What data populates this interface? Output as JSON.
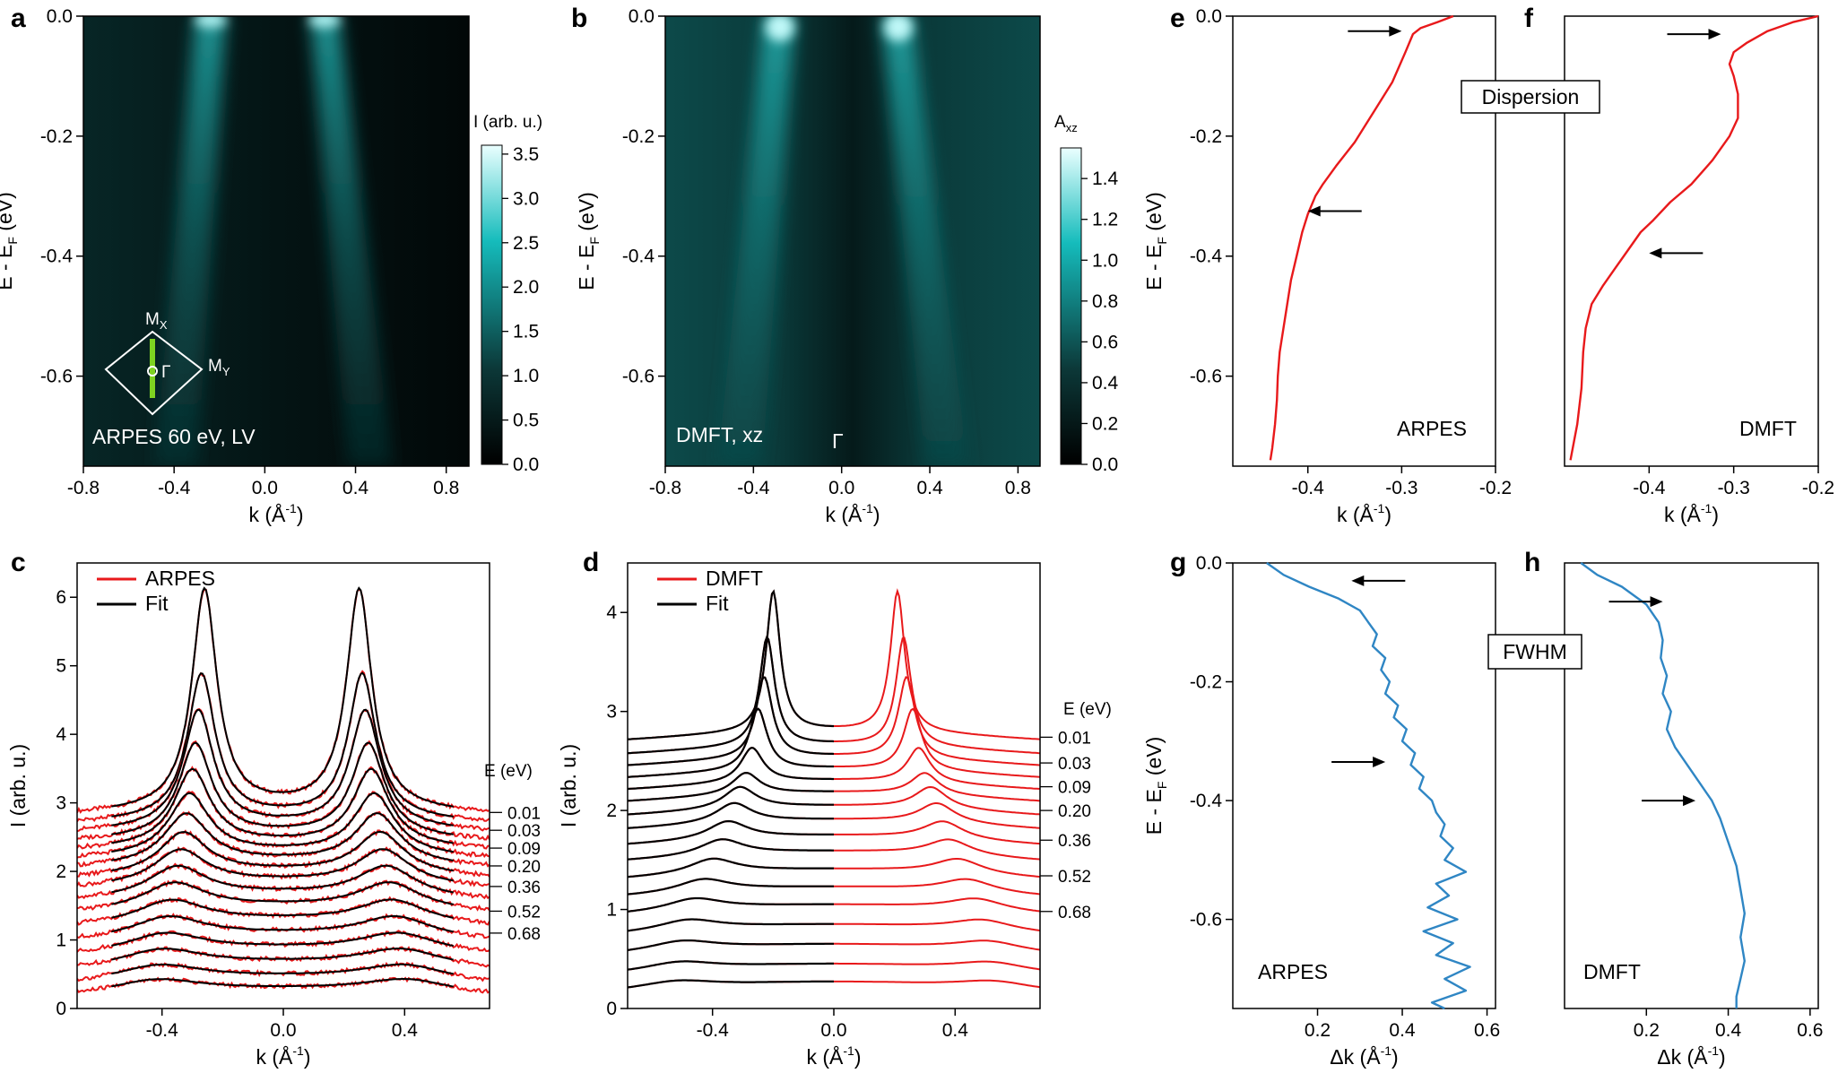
{
  "panels": {
    "a": {
      "letter": "a",
      "label": "ARPES 60 eV, LV",
      "cbar_title": "I (arb. u.)",
      "cbar_ticks": [
        "0.0",
        "0.5",
        "1.0",
        "1.5",
        "2.0",
        "2.5",
        "3.0",
        "3.5"
      ],
      "bz_mx": "M",
      "bz_mx_sub": "X",
      "bz_my": "M",
      "bz_my_sub": "Y",
      "bz_gamma": "Γ"
    },
    "b": {
      "letter": "b",
      "label": "DMFT, xz",
      "gamma": "Γ",
      "cbar_title": "A",
      "cbar_sub": "xz",
      "cbar_ticks": [
        "0.0",
        "0.2",
        "0.4",
        "0.6",
        "0.8",
        "1.0",
        "1.2",
        "1.4"
      ]
    },
    "c": {
      "letter": "c",
      "legend": [
        "ARPES",
        "Fit"
      ],
      "energy_title": "E (eV)",
      "energies": [
        "0.01",
        "0.03",
        "0.09",
        "0.20",
        "0.36",
        "0.52",
        "0.68"
      ]
    },
    "d": {
      "letter": "d",
      "legend": [
        "DMFT",
        "Fit"
      ],
      "energy_title": "E (eV)",
      "energies": [
        "0.01",
        "0.03",
        "0.09",
        "0.20",
        "0.36",
        "0.52",
        "0.68"
      ]
    },
    "e": {
      "letter": "e",
      "label": "ARPES"
    },
    "f": {
      "letter": "f",
      "label": "DMFT"
    },
    "g": {
      "letter": "g",
      "label": "ARPES"
    },
    "h": {
      "letter": "h",
      "label": "DMFT"
    }
  },
  "badges": {
    "dispersion": "Dispersion",
    "fwhm": "FWHM"
  },
  "axis_labels": {
    "energy": "E - E",
    "energy_sub": "F",
    "energy_unit": " (eV)",
    "k": "k (Å",
    "k_sup": "-1",
    "k_close": ")",
    "intensity": "I (arb. u.)",
    "dk": "Δk (Å",
    "dk_sup": "-1",
    "dk_close": ")"
  },
  "chart_data": [
    {
      "id": "a",
      "type": "heatmap",
      "title": "ARPES 60 eV, LV",
      "xlabel": "k (Å-1)",
      "ylabel": "E - EF (eV)",
      "xlim": [
        -0.8,
        0.9
      ],
      "ylim": [
        -0.75,
        0.0
      ],
      "xticks": [
        "-0.8",
        "-0.4",
        "0.0",
        "0.4",
        "0.8"
      ],
      "xtick_values": [
        -0.8,
        -0.4,
        0.0,
        0.4,
        0.8
      ],
      "yticks": [
        "0.0",
        "-0.2",
        "-0.4",
        "-0.6"
      ],
      "ytick_values": [
        0.0,
        -0.2,
        -0.4,
        -0.6
      ],
      "colorbar": {
        "label": "I (arb. u.)",
        "range": [
          0,
          3.6
        ],
        "colors": [
          "#000000",
          "#0c3838",
          "#15bcbc",
          "#eaffff"
        ]
      },
      "bands": [
        {
          "k_at_EF": -0.26,
          "k_at_bottom": -0.45
        },
        {
          "k_at_EF": 0.24,
          "k_at_bottom": 0.46
        }
      ]
    },
    {
      "id": "b",
      "type": "heatmap",
      "title": "DMFT, xz",
      "xlabel": "k (Å-1)",
      "ylabel": "E - EF (eV)",
      "xlim": [
        -0.8,
        0.9
      ],
      "ylim": [
        -0.75,
        0.0
      ],
      "xticks": [
        "-0.8",
        "-0.4",
        "0.0",
        "0.4",
        "0.8"
      ],
      "xtick_values": [
        -0.8,
        -0.4,
        0.0,
        0.4,
        0.8
      ],
      "yticks": [
        "0.0",
        "-0.2",
        "-0.4",
        "-0.6"
      ],
      "ytick_values": [
        0.0,
        -0.2,
        -0.4,
        -0.6
      ],
      "colorbar": {
        "label": "Axz",
        "range": [
          0,
          1.55
        ],
        "colors": [
          "#000000",
          "#0c3838",
          "#15bcbc",
          "#eaffff"
        ]
      },
      "bands": [
        {
          "k_at_EF": -0.3,
          "k_at_bottom": -0.5
        },
        {
          "k_at_EF": 0.28,
          "k_at_bottom": 0.5
        }
      ]
    },
    {
      "id": "c",
      "type": "line",
      "xlabel": "k (Å-1)",
      "ylabel": "I (arb. u.)",
      "xlim": [
        -0.68,
        0.68
      ],
      "ylim": [
        0,
        6.5
      ],
      "xticks": [
        "-0.4",
        "0.0",
        "0.4"
      ],
      "xtick_values": [
        -0.4,
        0.0,
        0.4
      ],
      "yticks": [
        "0",
        "1",
        "2",
        "3",
        "4",
        "5",
        "6"
      ],
      "ytick_values": [
        0,
        1,
        2,
        3,
        4,
        5,
        6
      ],
      "legend": [
        "ARPES",
        "Fit"
      ],
      "energy_labels": [
        "0.01",
        "0.03",
        "0.09",
        "0.20",
        "0.36",
        "0.52",
        "0.68"
      ],
      "series": [
        {
          "offset": 2.86,
          "kL": -0.26,
          "kR": 0.25,
          "amp": 3.2,
          "width": 0.05
        },
        {
          "offset": 2.73,
          "kL": -0.27,
          "kR": 0.26,
          "amp": 2.1,
          "width": 0.055
        },
        {
          "offset": 2.6,
          "kL": -0.28,
          "kR": 0.27,
          "amp": 1.7,
          "width": 0.06
        },
        {
          "offset": 2.47,
          "kL": -0.29,
          "kR": 0.28,
          "amp": 1.35,
          "width": 0.065
        },
        {
          "offset": 2.34,
          "kL": -0.3,
          "kR": 0.29,
          "amp": 1.1,
          "width": 0.072
        },
        {
          "offset": 2.21,
          "kL": -0.31,
          "kR": 0.3,
          "amp": 0.88,
          "width": 0.08
        },
        {
          "offset": 2.08,
          "kL": -0.32,
          "kR": 0.31,
          "amp": 0.72,
          "width": 0.088
        },
        {
          "offset": 1.93,
          "kL": -0.33,
          "kR": 0.32,
          "amp": 0.6,
          "width": 0.095
        },
        {
          "offset": 1.78,
          "kL": -0.34,
          "kR": 0.33,
          "amp": 0.5,
          "width": 0.105
        },
        {
          "offset": 1.6,
          "kL": -0.35,
          "kR": 0.34,
          "amp": 0.44,
          "width": 0.115
        },
        {
          "offset": 1.42,
          "kL": -0.36,
          "kR": 0.35,
          "amp": 0.38,
          "width": 0.125
        },
        {
          "offset": 1.22,
          "kL": -0.37,
          "kR": 0.36,
          "amp": 0.33,
          "width": 0.135
        },
        {
          "offset": 1.01,
          "kL": -0.38,
          "kR": 0.37,
          "amp": 0.3,
          "width": 0.145
        },
        {
          "offset": 0.8,
          "kL": -0.39,
          "kR": 0.38,
          "amp": 0.27,
          "width": 0.155
        },
        {
          "offset": 0.59,
          "kL": -0.4,
          "kR": 0.39,
          "amp": 0.25,
          "width": 0.165
        },
        {
          "offset": 0.38,
          "kL": -0.41,
          "kR": 0.4,
          "amp": 0.23,
          "width": 0.175
        },
        {
          "offset": 0.2,
          "kL": -0.42,
          "kR": 0.41,
          "amp": 0.2,
          "width": 0.185
        }
      ],
      "label_offsets": [
        2.86,
        2.6,
        2.34,
        2.08,
        1.78,
        1.42,
        1.1
      ]
    },
    {
      "id": "d",
      "type": "line",
      "xlabel": "k (Å-1)",
      "ylabel": "I (arb. u.)",
      "xlim": [
        -0.68,
        0.68
      ],
      "ylim": [
        0,
        4.5
      ],
      "xticks": [
        "-0.4",
        "0.0",
        "0.4"
      ],
      "xtick_values": [
        -0.4,
        0.0,
        0.4
      ],
      "yticks": [
        "0",
        "1",
        "2",
        "3",
        "4"
      ],
      "ytick_values": [
        0,
        1,
        2,
        3,
        4
      ],
      "legend": [
        "DMFT",
        "Fit"
      ],
      "energy_labels": [
        "0.01",
        "0.03",
        "0.09",
        "0.20",
        "0.36",
        "0.52",
        "0.68"
      ],
      "series": [
        {
          "offset": 2.74,
          "kL": -0.2,
          "kR": 0.21,
          "amp": 1.42,
          "width": 0.028
        },
        {
          "offset": 2.6,
          "kL": -0.22,
          "kR": 0.23,
          "amp": 1.1,
          "width": 0.03
        },
        {
          "offset": 2.48,
          "kL": -0.23,
          "kR": 0.24,
          "amp": 0.82,
          "width": 0.033
        },
        {
          "offset": 2.36,
          "kL": -0.25,
          "kR": 0.26,
          "amp": 0.62,
          "width": 0.036
        },
        {
          "offset": 2.24,
          "kL": -0.27,
          "kR": 0.28,
          "amp": 0.35,
          "width": 0.045
        },
        {
          "offset": 2.12,
          "kL": -0.29,
          "kR": 0.3,
          "amp": 0.22,
          "width": 0.055
        },
        {
          "offset": 1.98,
          "kL": -0.31,
          "kR": 0.32,
          "amp": 0.22,
          "width": 0.065
        },
        {
          "offset": 1.84,
          "kL": -0.33,
          "kR": 0.34,
          "amp": 0.2,
          "width": 0.072
        },
        {
          "offset": 1.68,
          "kL": -0.35,
          "kR": 0.36,
          "amp": 0.18,
          "width": 0.08
        },
        {
          "offset": 1.52,
          "kL": -0.37,
          "kR": 0.38,
          "amp": 0.16,
          "width": 0.088
        },
        {
          "offset": 1.34,
          "kL": -0.4,
          "kR": 0.41,
          "amp": 0.15,
          "width": 0.095
        },
        {
          "offset": 1.16,
          "kL": -0.43,
          "kR": 0.44,
          "amp": 0.13,
          "width": 0.105
        },
        {
          "offset": 0.98,
          "kL": -0.46,
          "kR": 0.47,
          "amp": 0.12,
          "width": 0.115
        },
        {
          "offset": 0.78,
          "kL": -0.48,
          "kR": 0.49,
          "amp": 0.11,
          "width": 0.125
        },
        {
          "offset": 0.58,
          "kL": -0.5,
          "kR": 0.51,
          "amp": 0.1,
          "width": 0.135
        },
        {
          "offset": 0.38,
          "kL": -0.51,
          "kR": 0.52,
          "amp": 0.09,
          "width": 0.145
        },
        {
          "offset": 0.2,
          "kL": -0.52,
          "kR": 0.53,
          "amp": 0.08,
          "width": 0.155
        }
      ],
      "label_offsets": [
        2.74,
        2.48,
        2.24,
        2.0,
        1.7,
        1.34,
        0.98
      ]
    },
    {
      "id": "e",
      "type": "line",
      "title": "ARPES",
      "xlabel": "k (Å-1)",
      "ylabel": "E - EF (eV)",
      "xlim": [
        -0.48,
        -0.2
      ],
      "ylim": [
        -0.75,
        0.0
      ],
      "xticks": [
        "-0.4",
        "-0.3",
        "-0.2"
      ],
      "xtick_values": [
        -0.4,
        -0.3,
        -0.2
      ],
      "yticks": [
        "0.0",
        "-0.2",
        "-0.4",
        "-0.6"
      ],
      "ytick_values": [
        0.0,
        -0.2,
        -0.4,
        -0.6
      ],
      "x": [
        -0.245,
        -0.262,
        -0.28,
        -0.288,
        -0.296,
        -0.31,
        -0.33,
        -0.35,
        -0.37,
        -0.384,
        -0.392,
        -0.4,
        -0.406,
        -0.412,
        -0.418,
        -0.422,
        -0.426,
        -0.43,
        -0.432,
        -0.433,
        -0.435,
        -0.438,
        -0.44
      ],
      "y": [
        0.0,
        -0.01,
        -0.02,
        -0.03,
        -0.06,
        -0.11,
        -0.16,
        -0.21,
        -0.25,
        -0.28,
        -0.3,
        -0.33,
        -0.36,
        -0.4,
        -0.44,
        -0.48,
        -0.52,
        -0.56,
        -0.6,
        -0.64,
        -0.68,
        -0.72,
        -0.74
      ],
      "arrows": [
        {
          "x": -0.3,
          "y": -0.025
        },
        {
          "x": -0.4,
          "y": -0.325
        }
      ]
    },
    {
      "id": "f",
      "type": "line",
      "title": "DMFT",
      "xlabel": "k (Å-1)",
      "ylabel": "E - EF (eV)",
      "xlim": [
        -0.5,
        -0.2
      ],
      "ylim": [
        -0.75,
        0.0
      ],
      "xticks": [
        "-0.4",
        "-0.3",
        "-0.2"
      ],
      "xtick_values": [
        -0.4,
        -0.3,
        -0.2
      ],
      "yticks": [
        "0.0",
        "-0.2",
        "-0.4",
        "-0.6"
      ],
      "ytick_values": [
        0.0,
        -0.2,
        -0.4,
        -0.6
      ],
      "x": [
        -0.2,
        -0.23,
        -0.26,
        -0.285,
        -0.3,
        -0.305,
        -0.3,
        -0.295,
        -0.295,
        -0.305,
        -0.325,
        -0.35,
        -0.375,
        -0.395,
        -0.41,
        -0.425,
        -0.44,
        -0.455,
        -0.468,
        -0.475,
        -0.478,
        -0.48,
        -0.485,
        -0.493
      ],
      "y": [
        0.0,
        -0.01,
        -0.025,
        -0.045,
        -0.06,
        -0.08,
        -0.1,
        -0.13,
        -0.17,
        -0.2,
        -0.24,
        -0.28,
        -0.31,
        -0.34,
        -0.36,
        -0.39,
        -0.42,
        -0.45,
        -0.48,
        -0.52,
        -0.56,
        -0.62,
        -0.68,
        -0.74
      ],
      "arrows": [
        {
          "x": -0.315,
          "y": -0.03
        },
        {
          "x": -0.4,
          "y": -0.395
        }
      ]
    },
    {
      "id": "g",
      "type": "line",
      "title": "ARPES",
      "xlabel": "Δk (Å-1)",
      "ylabel": "E - EF (eV)",
      "xlim": [
        0.0,
        0.62
      ],
      "ylim": [
        -0.75,
        0.0
      ],
      "xticks": [
        "0.2",
        "0.4",
        "0.6"
      ],
      "xtick_values": [
        0.2,
        0.4,
        0.6
      ],
      "yticks": [
        "0.0",
        "-0.2",
        "-0.4",
        "-0.6"
      ],
      "ytick_values": [
        0.0,
        -0.2,
        -0.4,
        -0.6
      ],
      "x": [
        0.08,
        0.12,
        0.18,
        0.25,
        0.3,
        0.32,
        0.34,
        0.33,
        0.36,
        0.35,
        0.37,
        0.36,
        0.39,
        0.38,
        0.41,
        0.4,
        0.43,
        0.42,
        0.45,
        0.44,
        0.47,
        0.48,
        0.5,
        0.49,
        0.52,
        0.5,
        0.55,
        0.48,
        0.51,
        0.46,
        0.53,
        0.45,
        0.52,
        0.48,
        0.56,
        0.5,
        0.55,
        0.47,
        0.5
      ],
      "y": [
        0.0,
        -0.02,
        -0.04,
        -0.06,
        -0.08,
        -0.1,
        -0.12,
        -0.14,
        -0.16,
        -0.18,
        -0.2,
        -0.22,
        -0.24,
        -0.26,
        -0.28,
        -0.3,
        -0.32,
        -0.34,
        -0.36,
        -0.38,
        -0.4,
        -0.42,
        -0.44,
        -0.46,
        -0.48,
        -0.5,
        -0.52,
        -0.54,
        -0.56,
        -0.58,
        -0.6,
        -0.62,
        -0.64,
        -0.66,
        -0.68,
        -0.7,
        -0.72,
        -0.74,
        -0.75
      ],
      "arrows": [
        {
          "x": 0.28,
          "y": -0.03
        },
        {
          "x": 0.36,
          "y": -0.335
        }
      ]
    },
    {
      "id": "h",
      "type": "line",
      "title": "DMFT",
      "xlabel": "Δk (Å-1)",
      "ylabel": "E - EF (eV)",
      "xlim": [
        0.0,
        0.62
      ],
      "ylim": [
        -0.75,
        0.0
      ],
      "xticks": [
        "0.2",
        "0.4",
        "0.6"
      ],
      "xtick_values": [
        0.2,
        0.4,
        0.6
      ],
      "yticks": [
        "0.0",
        "-0.2",
        "-0.4",
        "-0.6"
      ],
      "ytick_values": [
        0.0,
        -0.2,
        -0.4,
        -0.6
      ],
      "x": [
        0.04,
        0.08,
        0.14,
        0.2,
        0.23,
        0.24,
        0.235,
        0.25,
        0.24,
        0.26,
        0.25,
        0.27,
        0.3,
        0.33,
        0.36,
        0.38,
        0.4,
        0.42,
        0.43,
        0.44,
        0.43,
        0.44,
        0.43,
        0.42,
        0.42
      ],
      "y": [
        0.0,
        -0.02,
        -0.04,
        -0.07,
        -0.1,
        -0.13,
        -0.16,
        -0.19,
        -0.22,
        -0.25,
        -0.28,
        -0.31,
        -0.34,
        -0.37,
        -0.4,
        -0.43,
        -0.47,
        -0.51,
        -0.55,
        -0.59,
        -0.63,
        -0.67,
        -0.7,
        -0.73,
        -0.75
      ],
      "arrows": [
        {
          "x": 0.24,
          "y": -0.065
        },
        {
          "x": 0.32,
          "y": -0.4
        }
      ]
    }
  ]
}
